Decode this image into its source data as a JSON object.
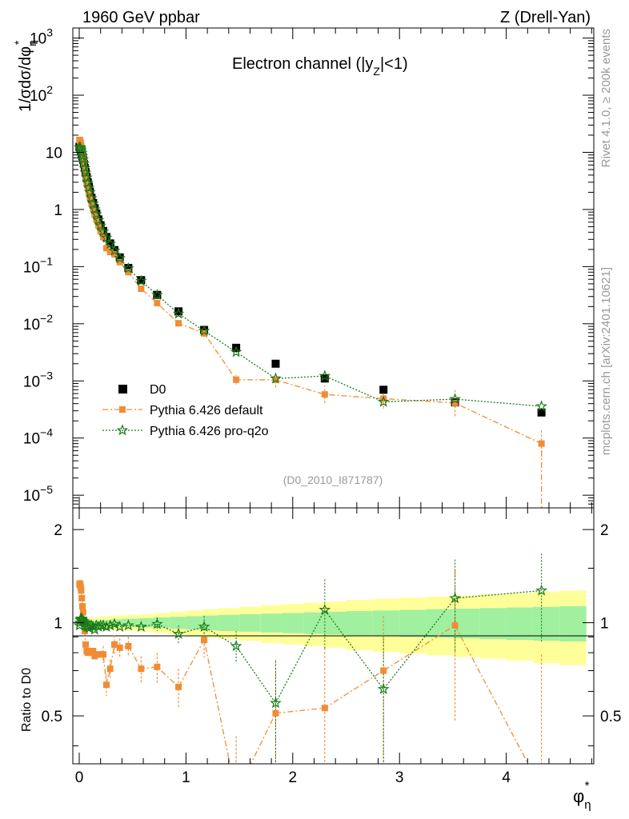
{
  "header": {
    "left": "1960 GeV ppbar",
    "right": "Z (Drell-Yan)"
  },
  "panel_title": {
    "main": "Electron channel (|y",
    "sub": "Z",
    "tail": "|<1)"
  },
  "side_labels": {
    "rivet": "Rivet 4.1.0, ≥ 200k events",
    "mcplots": "mcplots.cern.ch [arXiv:2401.10621]"
  },
  "analysis_id": "(D0_2010_I871787)",
  "axes": {
    "y_main_label": "1/σdσ/dφ",
    "y_main_sub": "η",
    "y_main_sup": "*",
    "y_ratio_label": "Ratio to D0",
    "x_label": "φ",
    "x_sub": "η",
    "x_sup": "*",
    "main_y_ticks": [
      {
        "base": "10",
        "exp": "−5",
        "v": 1e-05
      },
      {
        "base": "10",
        "exp": "−4",
        "v": 0.0001
      },
      {
        "base": "10",
        "exp": "−3",
        "v": 0.001
      },
      {
        "base": "10",
        "exp": "−2",
        "v": 0.01
      },
      {
        "base": "10",
        "exp": "−1",
        "v": 0.1
      },
      {
        "base": "1",
        "exp": "",
        "v": 1
      },
      {
        "base": "10",
        "exp": "",
        "v": 10
      },
      {
        "base": "10",
        "exp": "2",
        "v": 100
      },
      {
        "base": "10",
        "exp": "3",
        "v": 1000
      }
    ],
    "ratio_y_ticks": [
      {
        "label": "0.5",
        "v": 0.5
      },
      {
        "label": "1",
        "v": 1
      },
      {
        "label": "2",
        "v": 2
      }
    ],
    "x_ticks": [
      {
        "label": "0",
        "v": 0
      },
      {
        "label": "1",
        "v": 1
      },
      {
        "label": "2",
        "v": 2
      },
      {
        "label": "3",
        "v": 3
      },
      {
        "label": "4",
        "v": 4
      }
    ]
  },
  "legend": {
    "d0": "D0",
    "default": "Pythia 6.426 default",
    "proq2o": "Pythia 6.426 pro-q2o"
  },
  "colors": {
    "data": "#000000",
    "default": "#f28c34",
    "proq2o": "#1a7a1a",
    "band_inner": "#a0f0a0",
    "band_outer": "#ffff99",
    "annotation": "#999999"
  },
  "chart_data": {
    "type": "scatter",
    "title": "Electron channel (|y_Z|<1)",
    "xlabel": "φ*_η",
    "ylabel": "1/σ dσ/dφ*_η",
    "xlim": [
      -0.06,
      4.82
    ],
    "ylim": [
      6e-06,
      1500
    ],
    "yscale": "log",
    "ratio_ylim": [
      0.35,
      2.35
    ],
    "ratio_yscale": "log",
    "series": [
      {
        "name": "D0",
        "x": [
          0.002,
          0.006,
          0.01,
          0.014,
          0.018,
          0.024,
          0.03,
          0.036,
          0.044,
          0.052,
          0.06,
          0.07,
          0.08,
          0.09,
          0.1,
          0.115,
          0.13,
          0.145,
          0.16,
          0.18,
          0.2,
          0.225,
          0.255,
          0.29,
          0.33,
          0.38,
          0.46,
          0.58,
          0.73,
          0.93,
          1.17,
          1.47,
          1.84,
          2.3,
          2.85,
          3.52,
          4.33
        ],
        "y": [
          12.5,
          12.2,
          11.8,
          11.2,
          10.5,
          9.5,
          8.4,
          7.4,
          6.3,
          5.3,
          4.5,
          3.7,
          3.0,
          2.5,
          2.05,
          1.6,
          1.3,
          1.05,
          0.85,
          0.67,
          0.53,
          0.42,
          0.33,
          0.255,
          0.195,
          0.145,
          0.095,
          0.058,
          0.032,
          0.0165,
          0.0078,
          0.0038,
          0.002,
          0.0011,
          0.0007,
          0.00042,
          0.00028
        ],
        "ratio_band_edges": [
          0,
          0.1,
          0.2,
          0.3,
          0.4,
          0.55,
          0.7,
          0.85,
          1.0,
          1.15,
          1.3,
          1.5,
          1.7,
          1.9,
          2.1,
          2.3,
          2.5,
          2.75,
          3.0,
          3.25,
          3.5,
          3.75,
          4.0,
          4.25,
          4.5,
          4.75
        ],
        "ratio_band_stat": [
          0.01,
          0.015,
          0.02,
          0.025,
          0.03,
          0.035,
          0.04,
          0.045,
          0.05,
          0.055,
          0.06,
          0.065,
          0.07,
          0.075,
          0.08,
          0.085,
          0.09,
          0.095,
          0.1,
          0.105,
          0.11,
          0.115,
          0.12,
          0.125,
          0.13
        ],
        "ratio_band_total": [
          0.03,
          0.04,
          0.05,
          0.055,
          0.06,
          0.065,
          0.075,
          0.085,
          0.095,
          0.105,
          0.115,
          0.125,
          0.14,
          0.15,
          0.16,
          0.17,
          0.185,
          0.195,
          0.205,
          0.215,
          0.225,
          0.235,
          0.245,
          0.26,
          0.27
        ]
      },
      {
        "name": "Pythia 6.426 default",
        "x": [
          0.002,
          0.006,
          0.01,
          0.014,
          0.018,
          0.024,
          0.03,
          0.036,
          0.044,
          0.052,
          0.06,
          0.07,
          0.08,
          0.09,
          0.1,
          0.115,
          0.13,
          0.145,
          0.16,
          0.18,
          0.2,
          0.225,
          0.255,
          0.29,
          0.33,
          0.38,
          0.46,
          0.58,
          0.73,
          0.93,
          1.17,
          1.47,
          1.84,
          2.3,
          2.85,
          3.52,
          4.33
        ],
        "y": [
          16.5,
          16.3,
          15.6,
          14.5,
          13.3,
          11.4,
          9.5,
          8.0,
          6.4,
          5.0,
          3.8,
          3.0,
          2.4,
          2.0,
          1.65,
          1.28,
          1.05,
          0.82,
          0.67,
          0.53,
          0.42,
          0.33,
          0.21,
          0.18,
          0.165,
          0.12,
          0.08,
          0.041,
          0.023,
          0.0102,
          0.0068,
          0.00105,
          0.00104,
          0.00058,
          0.00049,
          0.00041,
          8e-05
        ],
        "ratio": [
          1.33,
          1.34,
          1.32,
          1.3,
          1.27,
          1.2,
          1.13,
          1.08,
          1.02,
          0.94,
          0.85,
          0.81,
          0.8,
          0.8,
          0.81,
          0.8,
          0.81,
          0.78,
          0.79,
          0.79,
          0.79,
          0.79,
          0.63,
          0.71,
          0.85,
          0.83,
          0.84,
          0.71,
          0.72,
          0.62,
          0.88,
          0.28,
          0.51,
          0.53,
          0.7,
          0.98,
          0.29
        ],
        "ratio_err": [
          0.02,
          0.02,
          0.02,
          0.02,
          0.02,
          0.02,
          0.02,
          0.02,
          0.02,
          0.02,
          0.03,
          0.03,
          0.03,
          0.03,
          0.03,
          0.03,
          0.04,
          0.04,
          0.04,
          0.04,
          0.04,
          0.05,
          0.05,
          0.05,
          0.06,
          0.06,
          0.06,
          0.07,
          0.08,
          0.09,
          0.11,
          0.15,
          0.25,
          0.3,
          0.35,
          0.5,
          0.5
        ]
      },
      {
        "name": "Pythia 6.426 pro-q2o",
        "x": [
          0.002,
          0.006,
          0.01,
          0.014,
          0.018,
          0.024,
          0.03,
          0.036,
          0.044,
          0.052,
          0.06,
          0.07,
          0.08,
          0.09,
          0.1,
          0.115,
          0.13,
          0.145,
          0.16,
          0.18,
          0.2,
          0.225,
          0.255,
          0.29,
          0.33,
          0.38,
          0.46,
          0.58,
          0.73,
          0.93,
          1.17,
          1.47,
          1.84,
          2.3,
          2.85,
          3.52,
          4.33
        ],
        "y": [
          12.3,
          12.2,
          12.0,
          11.5,
          10.8,
          9.8,
          8.6,
          7.5,
          6.4,
          5.3,
          4.4,
          3.6,
          2.9,
          2.4,
          2.0,
          1.57,
          1.26,
          1.0,
          0.83,
          0.65,
          0.52,
          0.41,
          0.32,
          0.25,
          0.19,
          0.14,
          0.093,
          0.056,
          0.032,
          0.015,
          0.0075,
          0.0032,
          0.0011,
          0.00122,
          0.00043,
          0.00048,
          0.00036
        ],
        "ratio": [
          0.98,
          1.0,
          1.02,
          1.03,
          1.03,
          1.03,
          1.02,
          1.01,
          1.01,
          1.0,
          0.98,
          0.97,
          0.97,
          0.96,
          0.98,
          0.98,
          0.97,
          0.95,
          0.98,
          0.97,
          0.98,
          0.98,
          0.97,
          0.98,
          0.99,
          0.97,
          0.98,
          0.97,
          0.99,
          0.92,
          0.97,
          0.84,
          0.55,
          1.1,
          0.61,
          1.2,
          1.27
        ],
        "ratio_err": [
          0.01,
          0.01,
          0.01,
          0.01,
          0.01,
          0.01,
          0.01,
          0.01,
          0.01,
          0.01,
          0.015,
          0.015,
          0.015,
          0.015,
          0.015,
          0.02,
          0.02,
          0.02,
          0.02,
          0.02,
          0.025,
          0.025,
          0.025,
          0.03,
          0.03,
          0.03,
          0.035,
          0.04,
          0.05,
          0.06,
          0.08,
          0.1,
          0.2,
          0.28,
          0.3,
          0.4,
          0.4
        ]
      }
    ]
  }
}
